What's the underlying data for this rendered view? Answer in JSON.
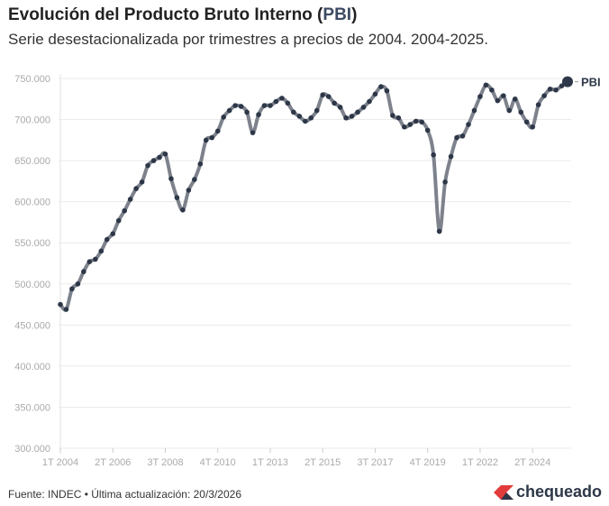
{
  "chart_data": {
    "type": "line",
    "title": "Evolución del Producto Bruto Interno (PBI)",
    "title_plain": "Evolución del Producto Bruto Interno (",
    "title_highlight": "PBI",
    "title_end": ")",
    "subtitle": "Serie desestacionalizada por trimestres a precios de 2004. 2004-2025.",
    "series_name": "PBI",
    "x_start": "1T 2004",
    "x_end": "4T 2025",
    "x_ticks": [
      {
        "i": 0,
        "label": "1T 2004"
      },
      {
        "i": 9,
        "label": "2T 2006"
      },
      {
        "i": 18,
        "label": "3T 2008"
      },
      {
        "i": 27,
        "label": "4T 2010"
      },
      {
        "i": 36,
        "label": "1T 2013"
      },
      {
        "i": 45,
        "label": "2T 2015"
      },
      {
        "i": 54,
        "label": "3T 2017"
      },
      {
        "i": 63,
        "label": "4T 2019"
      },
      {
        "i": 72,
        "label": "1T 2022"
      },
      {
        "i": 81,
        "label": "2T 2024"
      }
    ],
    "y_ticks": [
      {
        "v": 300000,
        "label": "300.000"
      },
      {
        "v": 350000,
        "label": "350.000"
      },
      {
        "v": 400000,
        "label": "400.000"
      },
      {
        "v": 450000,
        "label": "450.000"
      },
      {
        "v": 500000,
        "label": "500.000"
      },
      {
        "v": 550000,
        "label": "550.000"
      },
      {
        "v": 600000,
        "label": "600.000"
      },
      {
        "v": 650000,
        "label": "650.000"
      },
      {
        "v": 700000,
        "label": "700.000"
      },
      {
        "v": 750000,
        "label": "750.000"
      }
    ],
    "ylim": [
      300000,
      750000
    ],
    "grid": true,
    "values": [
      475,
      469,
      494,
      500,
      515,
      527,
      530,
      540,
      554,
      561,
      577,
      589,
      603,
      616,
      624,
      644,
      650,
      654,
      658,
      628,
      605,
      590,
      614,
      627,
      646,
      675,
      678,
      686,
      703,
      711,
      717,
      716,
      709,
      684,
      706,
      717,
      717,
      722,
      726,
      720,
      709,
      704,
      698,
      702,
      711,
      730,
      728,
      720,
      715,
      702,
      704,
      709,
      715,
      722,
      731,
      740,
      735,
      705,
      702,
      691,
      694,
      698,
      697,
      687,
      657,
      564,
      624,
      655,
      678,
      680,
      694,
      711,
      728,
      742,
      736,
      723,
      729,
      711,
      725,
      709,
      697,
      691,
      718,
      729,
      737,
      736,
      741,
      746
    ],
    "values_unit": "miles",
    "colors": {
      "line": "#7d828c",
      "point": "#2d3748"
    }
  },
  "footer": {
    "source": "Fuente: INDEC • Última actualización: 20/3/2026"
  },
  "logo": {
    "text": "chequeado"
  }
}
